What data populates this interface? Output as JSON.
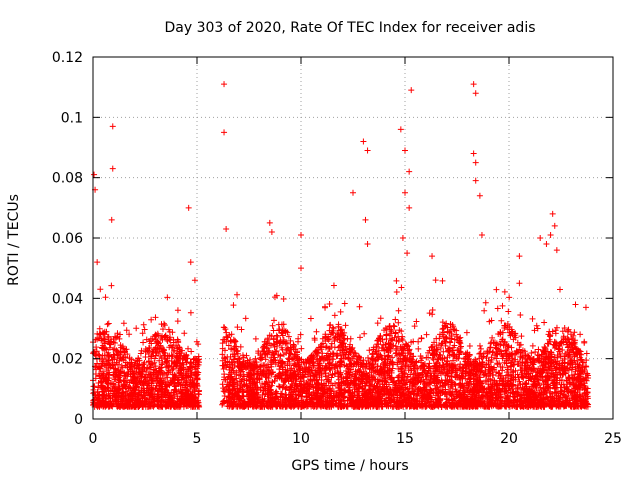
{
  "chart_data": {
    "type": "scatter",
    "title": "Day 303 of 2020, Rate Of TEC Index for receiver adis",
    "xlabel": "GPS time / hours",
    "ylabel": "ROTI / TECUs",
    "xlim": [
      0,
      25
    ],
    "ylim": [
      0,
      0.12
    ],
    "xticks": [
      0,
      5,
      10,
      15,
      20,
      25
    ],
    "yticks": [
      0,
      0.02,
      0.04,
      0.06,
      0.08,
      0.1,
      0.12
    ],
    "xtick_labels": [
      "0",
      "5",
      "10",
      "15",
      "20",
      "25"
    ],
    "ytick_labels": [
      "0",
      "0.02",
      "0.04",
      "0.06",
      "0.08",
      "0.1",
      "0.12"
    ],
    "grid": true,
    "marker": "+",
    "color": "#ff0000",
    "series": [
      {
        "name": "ROTI",
        "segments": [
          {
            "start": 0.0,
            "end": 5.1
          },
          {
            "start": 6.2,
            "end": 23.8
          }
        ],
        "peaks": [
          {
            "x": 0.05,
            "y": 0.081
          },
          {
            "x": 0.1,
            "y": 0.076
          },
          {
            "x": 0.2,
            "y": 0.052
          },
          {
            "x": 0.35,
            "y": 0.043
          },
          {
            "x": 0.95,
            "y": 0.097
          },
          {
            "x": 0.95,
            "y": 0.083
          },
          {
            "x": 0.9,
            "y": 0.066
          },
          {
            "x": 1.3,
            "y": 0.028
          },
          {
            "x": 4.6,
            "y": 0.07
          },
          {
            "x": 4.7,
            "y": 0.052
          },
          {
            "x": 4.9,
            "y": 0.046
          },
          {
            "x": 6.3,
            "y": 0.111
          },
          {
            "x": 6.3,
            "y": 0.095
          },
          {
            "x": 6.4,
            "y": 0.063
          },
          {
            "x": 8.5,
            "y": 0.065
          },
          {
            "x": 8.6,
            "y": 0.062
          },
          {
            "x": 10.0,
            "y": 0.061
          },
          {
            "x": 10.0,
            "y": 0.05
          },
          {
            "x": 12.5,
            "y": 0.075
          },
          {
            "x": 13.0,
            "y": 0.092
          },
          {
            "x": 13.2,
            "y": 0.089
          },
          {
            "x": 13.1,
            "y": 0.066
          },
          {
            "x": 13.2,
            "y": 0.058
          },
          {
            "x": 14.8,
            "y": 0.096
          },
          {
            "x": 15.0,
            "y": 0.089
          },
          {
            "x": 15.3,
            "y": 0.109
          },
          {
            "x": 15.2,
            "y": 0.082
          },
          {
            "x": 15.0,
            "y": 0.075
          },
          {
            "x": 15.2,
            "y": 0.07
          },
          {
            "x": 14.9,
            "y": 0.06
          },
          {
            "x": 15.1,
            "y": 0.055
          },
          {
            "x": 16.3,
            "y": 0.054
          },
          {
            "x": 18.3,
            "y": 0.111
          },
          {
            "x": 18.4,
            "y": 0.108
          },
          {
            "x": 18.3,
            "y": 0.088
          },
          {
            "x": 18.4,
            "y": 0.085
          },
          {
            "x": 18.4,
            "y": 0.079
          },
          {
            "x": 18.6,
            "y": 0.074
          },
          {
            "x": 18.7,
            "y": 0.061
          },
          {
            "x": 20.5,
            "y": 0.054
          },
          {
            "x": 20.5,
            "y": 0.045
          },
          {
            "x": 21.5,
            "y": 0.06
          },
          {
            "x": 21.8,
            "y": 0.058
          },
          {
            "x": 22.1,
            "y": 0.068
          },
          {
            "x": 22.2,
            "y": 0.064
          },
          {
            "x": 22.0,
            "y": 0.061
          },
          {
            "x": 22.3,
            "y": 0.056
          },
          {
            "x": 23.7,
            "y": 0.037
          }
        ]
      }
    ]
  }
}
